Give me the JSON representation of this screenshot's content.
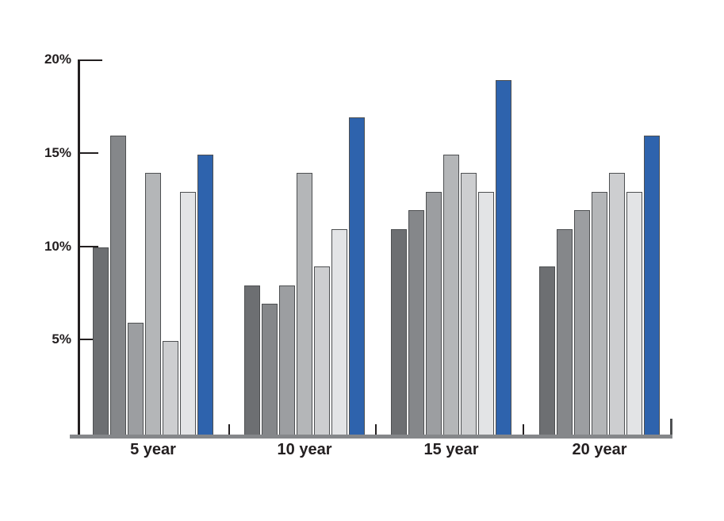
{
  "chart_data": {
    "type": "bar",
    "title": "",
    "categories": [
      "5 year",
      "10 year",
      "15 year",
      "20 year"
    ],
    "series": [
      {
        "name": "gray-1",
        "color": "#6d6f72",
        "values": [
          10,
          8,
          11,
          9
        ]
      },
      {
        "name": "gray-2",
        "color": "#85878a",
        "values": [
          16,
          7,
          12,
          11
        ]
      },
      {
        "name": "gray-3",
        "color": "#9c9ea1",
        "values": [
          6,
          8,
          13,
          12
        ]
      },
      {
        "name": "gray-4",
        "color": "#b4b6b8",
        "values": [
          14,
          14,
          15,
          13
        ]
      },
      {
        "name": "gray-5",
        "color": "#cdced0",
        "values": [
          5,
          9,
          14,
          14
        ]
      },
      {
        "name": "gray-6",
        "color": "#e3e4e6",
        "values": [
          13,
          11,
          13,
          13
        ]
      },
      {
        "name": "blue-highlight",
        "color": "#2e63ad",
        "values": [
          15,
          17,
          19,
          16
        ]
      }
    ],
    "y_ticks": [
      {
        "value": 20,
        "label": "20%"
      },
      {
        "value": 15,
        "label": "15%"
      },
      {
        "value": 10,
        "label": "10%"
      },
      {
        "value": 5,
        "label": "5%"
      }
    ],
    "ylim": [
      0,
      20
    ],
    "unit": "%",
    "grid": false,
    "legend": "none",
    "xlabel": "",
    "ylabel": "",
    "colors": {
      "axis": "#231f20",
      "baseline": "#85878a",
      "bar_outline": "#4e5052",
      "text": "#231f20",
      "background": "#ffffff"
    }
  }
}
